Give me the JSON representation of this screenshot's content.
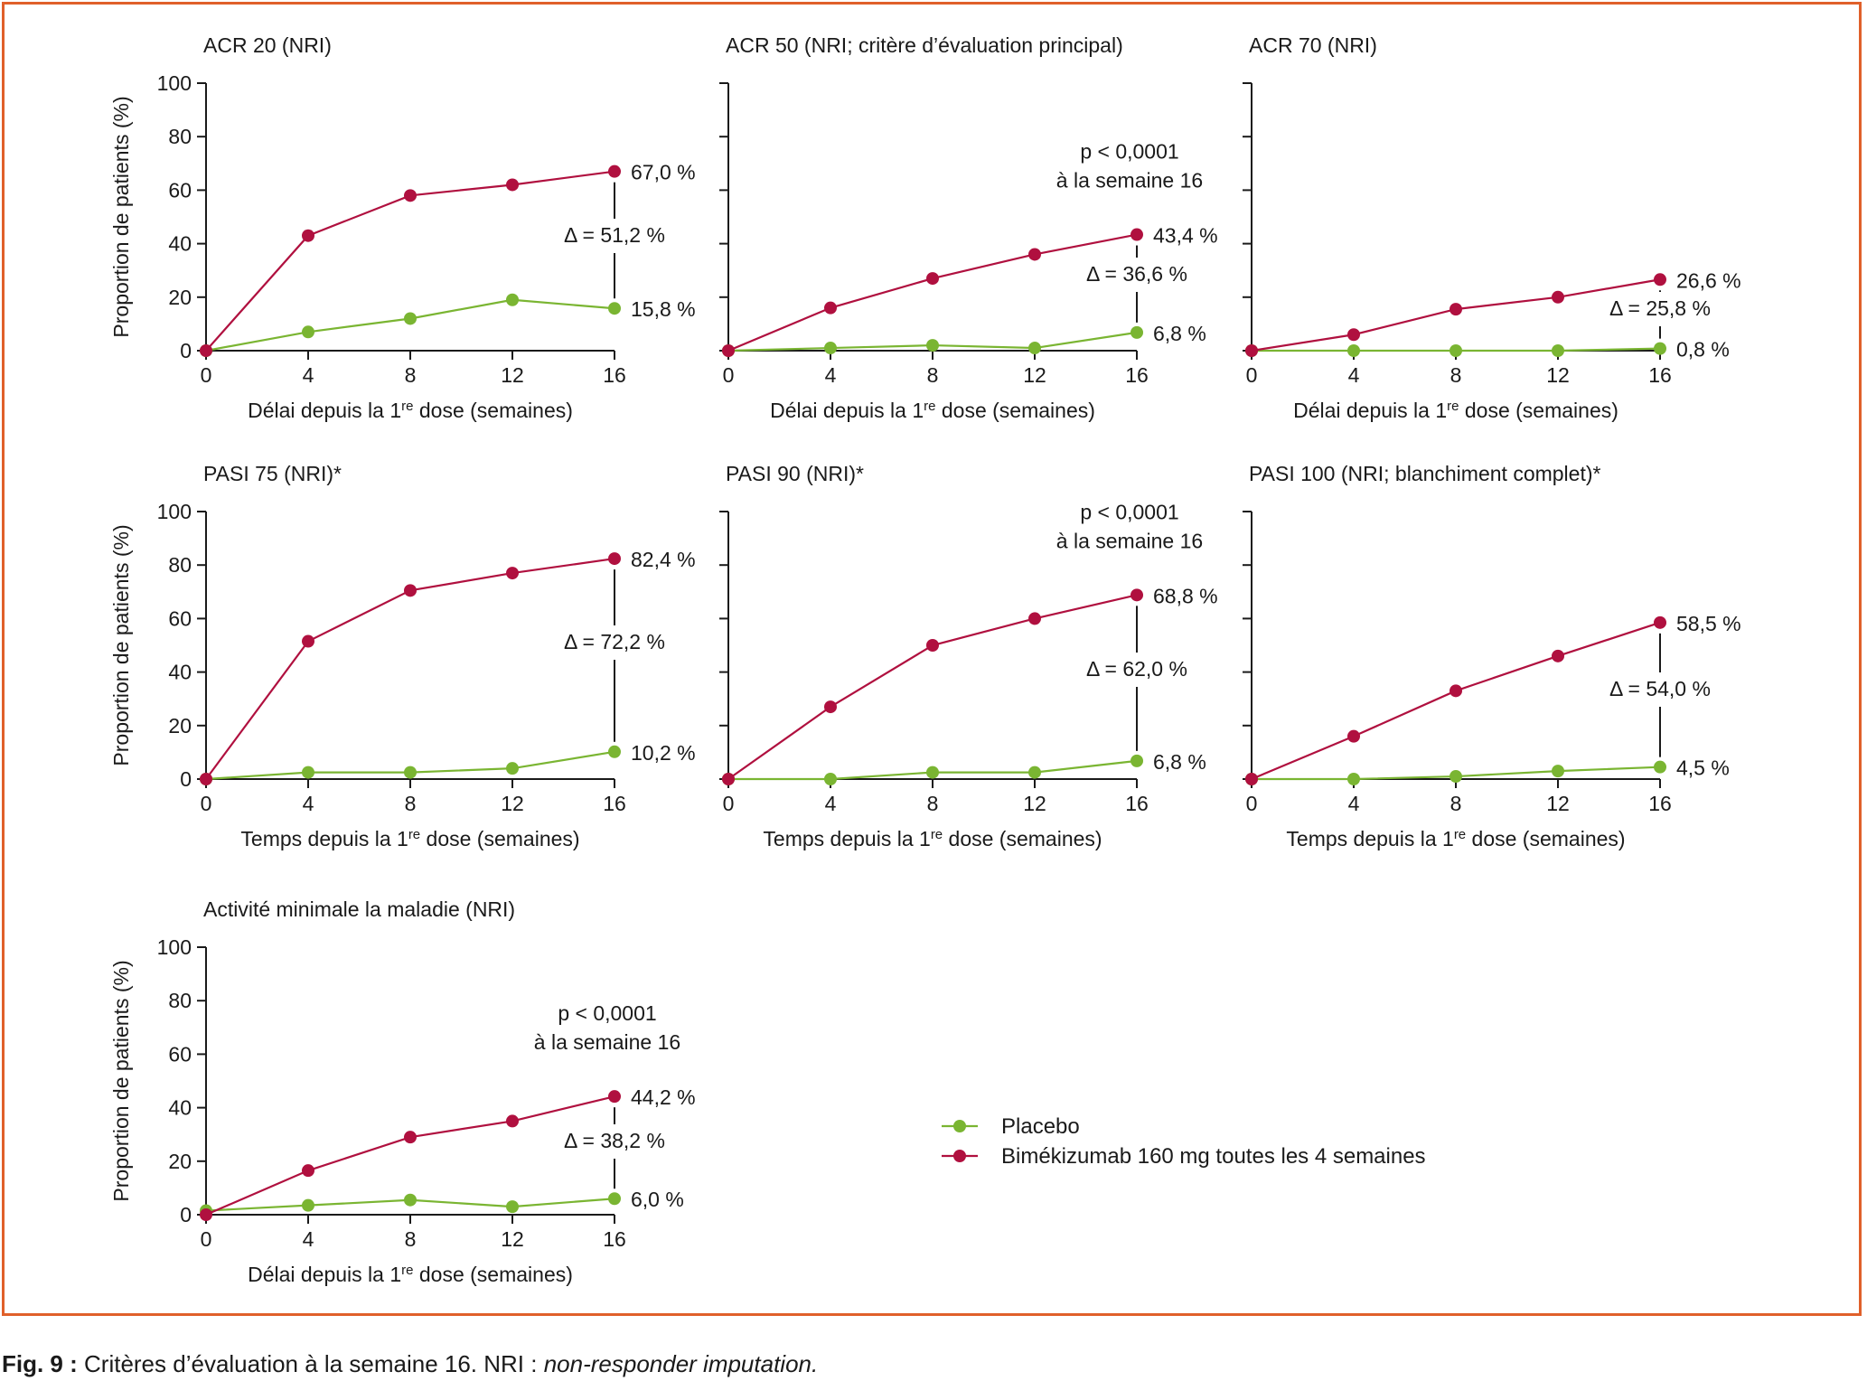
{
  "caption": {
    "label": "Fig. 9 :",
    "text": " Critères d’évaluation à la semaine 16. NRI : ",
    "italic": "non-responder imputation."
  },
  "legend": {
    "placebo": "Placebo",
    "bimekizumab": "Bimékizumab 160 mg toutes les 4 semaines"
  },
  "colors": {
    "placebo": "#7ab532",
    "bimekizumab": "#b0103f",
    "frame": "#e0602a"
  },
  "chart_data": [
    {
      "type": "line",
      "title": "ACR 20 (NRI)",
      "xlabel": "Délai depuis la 1re dose (semaines)",
      "ylabel": "Proportion de patients (%)",
      "x": [
        0,
        4,
        8,
        12,
        16
      ],
      "xlim": [
        0,
        16
      ],
      "ylim": [
        0,
        100
      ],
      "xticks": [
        "0",
        "4",
        "8",
        "12",
        "16"
      ],
      "yticks": [
        "0",
        "20",
        "40",
        "60",
        "80",
        "100"
      ],
      "series": [
        {
          "name": "Bimékizumab 160 mg toutes les 4 semaines",
          "values": [
            0,
            43,
            58,
            62,
            67
          ]
        },
        {
          "name": "Placebo",
          "values": [
            0,
            7,
            12,
            19,
            15.8
          ]
        }
      ],
      "annotations": {
        "bime_final": "67,0 %",
        "placebo_final": "15,8 %",
        "delta": "Δ = 51,2 %",
        "pvalue": [
          "",
          ""
        ]
      }
    },
    {
      "type": "line",
      "title": "ACR 50 (NRI; critère d’évaluation principal)",
      "xlabel": "Délai depuis la 1re dose (semaines)",
      "ylabel": "",
      "x": [
        0,
        4,
        8,
        12,
        16
      ],
      "xlim": [
        0,
        16
      ],
      "ylim": [
        0,
        100
      ],
      "xticks": [
        "0",
        "4",
        "8",
        "12",
        "16"
      ],
      "yticks": [],
      "series": [
        {
          "name": "Bimékizumab 160 mg toutes les 4 semaines",
          "values": [
            0,
            16,
            27,
            36,
            43.4
          ]
        },
        {
          "name": "Placebo",
          "values": [
            0,
            1,
            2,
            1,
            6.8
          ]
        }
      ],
      "annotations": {
        "bime_final": "43,4 %",
        "placebo_final": "6,8 %",
        "delta": "Δ = 36,6 %",
        "pvalue": [
          "p < 0,0001",
          "à la semaine 16"
        ]
      }
    },
    {
      "type": "line",
      "title": "ACR 70 (NRI)",
      "xlabel": "Délai depuis la 1re dose (semaines)",
      "ylabel": "",
      "x": [
        0,
        4,
        8,
        12,
        16
      ],
      "xlim": [
        0,
        16
      ],
      "ylim": [
        0,
        100
      ],
      "xticks": [
        "0",
        "4",
        "8",
        "12",
        "16"
      ],
      "yticks": [],
      "series": [
        {
          "name": "Bimékizumab 160 mg toutes les 4 semaines",
          "values": [
            0,
            6,
            15.5,
            20,
            26.6
          ]
        },
        {
          "name": "Placebo",
          "values": [
            0,
            0,
            0,
            0,
            0.8
          ]
        }
      ],
      "annotations": {
        "bime_final": "26,6 %",
        "placebo_final": "0,8 %",
        "delta": "Δ = 25,8 %",
        "pvalue": [
          "",
          ""
        ]
      }
    },
    {
      "type": "line",
      "title": "PASI 75 (NRI)*",
      "xlabel": "Temps depuis la 1re dose (semaines)",
      "ylabel": "Proportion de patients (%)",
      "x": [
        0,
        4,
        8,
        12,
        16
      ],
      "xlim": [
        0,
        16
      ],
      "ylim": [
        0,
        100
      ],
      "xticks": [
        "0",
        "4",
        "8",
        "12",
        "16"
      ],
      "yticks": [
        "0",
        "20",
        "40",
        "60",
        "80",
        "100"
      ],
      "series": [
        {
          "name": "Bimékizumab 160 mg toutes les 4 semaines",
          "values": [
            0,
            51.5,
            70.5,
            77,
            82.4
          ]
        },
        {
          "name": "Placebo",
          "values": [
            0,
            2.5,
            2.5,
            4,
            10.2
          ]
        }
      ],
      "annotations": {
        "bime_final": "82,4 %",
        "placebo_final": "10,2 %",
        "delta": "Δ = 72,2 %",
        "pvalue": [
          "",
          ""
        ]
      }
    },
    {
      "type": "line",
      "title": "PASI 90 (NRI)*",
      "xlabel": "Temps depuis la 1re dose (semaines)",
      "ylabel": "",
      "x": [
        0,
        4,
        8,
        12,
        16
      ],
      "xlim": [
        0,
        16
      ],
      "ylim": [
        0,
        100
      ],
      "xticks": [
        "0",
        "4",
        "8",
        "12",
        "16"
      ],
      "yticks": [],
      "series": [
        {
          "name": "Bimékizumab 160 mg toutes les 4 semaines",
          "values": [
            0,
            27,
            50,
            60,
            68.8
          ]
        },
        {
          "name": "Placebo",
          "values": [
            0,
            0,
            2.5,
            2.5,
            6.8
          ]
        }
      ],
      "annotations": {
        "bime_final": "68,8 %",
        "placebo_final": "6,8 %",
        "delta": "Δ = 62,0 %",
        "pvalue": [
          "p < 0,0001",
          "à la semaine 16"
        ]
      }
    },
    {
      "type": "line",
      "title": "PASI 100 (NRI; blanchiment complet)*",
      "xlabel": "Temps depuis la 1re dose (semaines)",
      "ylabel": "",
      "x": [
        0,
        4,
        8,
        12,
        16
      ],
      "xlim": [
        0,
        16
      ],
      "ylim": [
        0,
        100
      ],
      "xticks": [
        "0",
        "4",
        "8",
        "12",
        "16"
      ],
      "yticks": [],
      "series": [
        {
          "name": "Bimékizumab 160 mg toutes les 4 semaines",
          "values": [
            0,
            16,
            33,
            46,
            58.5
          ]
        },
        {
          "name": "Placebo",
          "values": [
            0,
            0,
            1,
            3,
            4.5
          ]
        }
      ],
      "annotations": {
        "bime_final": "58,5 %",
        "placebo_final": "4,5 %",
        "delta": "Δ = 54,0 %",
        "pvalue": [
          "",
          ""
        ]
      }
    },
    {
      "type": "line",
      "title": "Activité minimale la maladie (NRI)",
      "xlabel": "Délai depuis la 1re dose (semaines)",
      "ylabel": "Proportion de patients (%)",
      "x": [
        0,
        4,
        8,
        12,
        16
      ],
      "xlim": [
        0,
        16
      ],
      "ylim": [
        0,
        100
      ],
      "xticks": [
        "0",
        "4",
        "8",
        "12",
        "16"
      ],
      "yticks": [
        "0",
        "20",
        "40",
        "60",
        "80",
        "100"
      ],
      "series": [
        {
          "name": "Bimékizumab 160 mg toutes les 4 semaines",
          "values": [
            0,
            16.5,
            29,
            35,
            44.2
          ]
        },
        {
          "name": "Placebo",
          "values": [
            1.5,
            3.5,
            5.5,
            3,
            6
          ]
        }
      ],
      "annotations": {
        "bime_final": "44,2 %",
        "placebo_final": "6,0 %",
        "delta": "Δ = 38,2 %",
        "pvalue": [
          "p < 0,0001",
          "à la semaine 16"
        ]
      }
    }
  ]
}
